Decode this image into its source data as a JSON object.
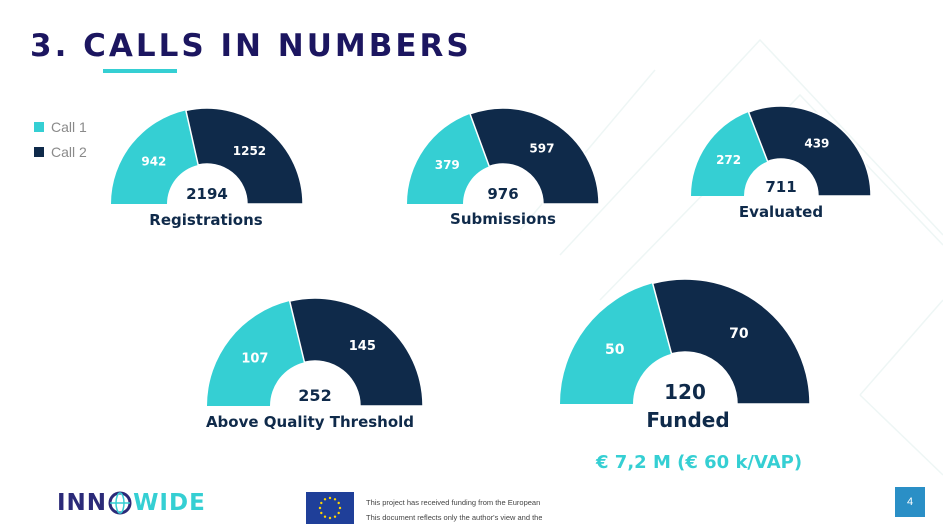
{
  "title": "3. CALLS IN NUMBERS",
  "colors": {
    "call1": "#35cfd3",
    "call2": "#0f2a4a",
    "title": "#1c1660"
  },
  "chart_data": {
    "type": "pie",
    "variant": "half-donut",
    "series_names": [
      "Call 1",
      "Call 2"
    ],
    "charts": [
      {
        "label": "Registrations",
        "call1": 942,
        "call2": 1252,
        "total": "2194"
      },
      {
        "label": "Submissions",
        "call1": 379,
        "call2": 597,
        "total": "976"
      },
      {
        "label": "Evaluated",
        "call1": 272,
        "call2": 439,
        "total": "711"
      },
      {
        "label": "Above Quality Threshold",
        "call1": 107,
        "call2": 145,
        "total": "252"
      },
      {
        "label": "Funded",
        "call1": 50,
        "call2": 70,
        "total": "120"
      }
    ]
  },
  "legend": [
    {
      "label": "Call 1",
      "color": "#35cfd3"
    },
    {
      "label": "Call 2",
      "color": "#0f2a4a"
    }
  ],
  "funding_note": "€ 7,2 M (€ 60 k/VAP)",
  "logo": {
    "part1": "INN",
    "part2": "WIDE"
  },
  "footer": {
    "line1": "This project has received funding from the European U",
    "line2": "This document reflects only the author's view and the C"
  },
  "page_number": "4"
}
